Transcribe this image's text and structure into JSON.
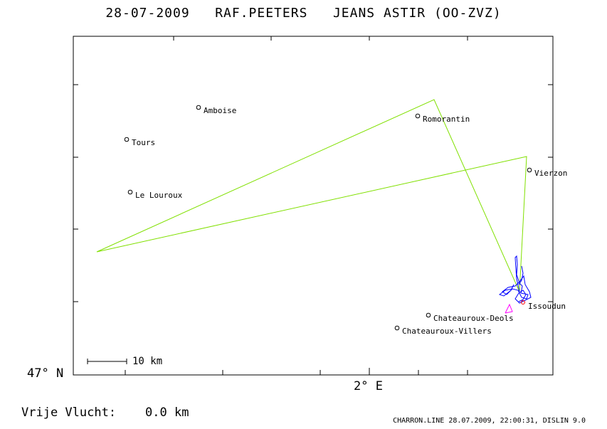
{
  "title": {
    "date": "28-07-2009",
    "pilot": "RAF.PEETERS",
    "glider": "JEANS ASTIR (OO-ZVZ)"
  },
  "axes": {
    "lat_label": "47° N",
    "lon_label": "2° E"
  },
  "scale_bar": {
    "label": "10 km"
  },
  "towns": [
    {
      "name": "Amboise"
    },
    {
      "name": "Tours"
    },
    {
      "name": "Le Louroux"
    },
    {
      "name": "Romorantin"
    },
    {
      "name": "Vierzon"
    },
    {
      "name": "Issoudun"
    },
    {
      "name": "Chateauroux-Deols"
    },
    {
      "name": "Chateauroux-Villers"
    }
  ],
  "stats": {
    "label": "Vrije Vlucht:",
    "value": "0.0 km"
  },
  "footer": "CHARRON.LINE 28.07.2009, 22:00:31, DISLIN 9.0",
  "colors": {
    "task_line": "#80e000",
    "track": "#0000ff",
    "start_marker": "#ff00ff",
    "axis": "#000000"
  }
}
